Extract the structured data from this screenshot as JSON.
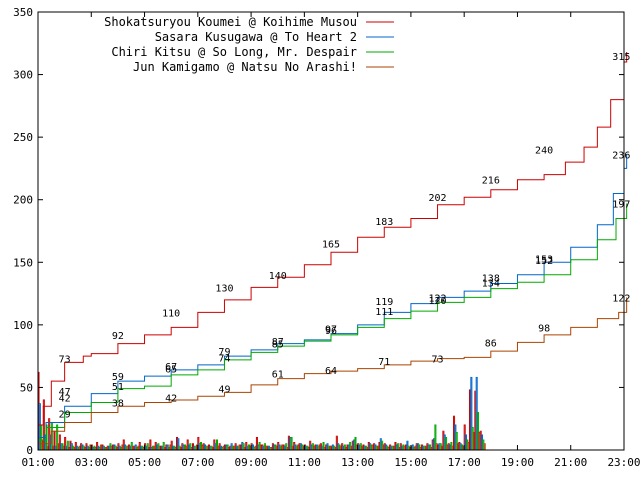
{
  "chart_data": {
    "type": "line",
    "xlim": [
      1,
      23
    ],
    "ylim": [
      0,
      350
    ],
    "x_ticks": [
      "01:00",
      "03:00",
      "05:00",
      "07:00",
      "09:00",
      "11:00",
      "13:00",
      "15:00",
      "17:00",
      "19:00",
      "21:00",
      "23:00"
    ],
    "y_ticks": [
      0,
      50,
      100,
      150,
      200,
      250,
      300,
      350
    ],
    "grid": false,
    "legend_position": "top-left",
    "series": [
      {
        "name": "Shokatsuryou Koumei @ Koihime Musou",
        "color": "#cc0000",
        "points": [
          [
            1,
            20
          ],
          [
            1.2,
            35
          ],
          [
            1.5,
            55
          ],
          [
            2,
            70
          ],
          [
            2.7,
            75
          ],
          [
            3,
            77
          ],
          [
            4,
            85
          ],
          [
            5,
            92
          ],
          [
            6,
            98
          ],
          [
            7,
            110
          ],
          [
            8,
            120
          ],
          [
            9,
            130
          ],
          [
            10,
            138
          ],
          [
            11,
            148
          ],
          [
            12,
            158
          ],
          [
            13,
            170
          ],
          [
            14,
            178
          ],
          [
            15,
            185
          ],
          [
            16,
            196
          ],
          [
            17,
            202
          ],
          [
            18,
            208
          ],
          [
            19,
            216
          ],
          [
            20,
            220
          ],
          [
            20.8,
            230
          ],
          [
            21.5,
            242
          ],
          [
            22,
            258
          ],
          [
            22.5,
            280
          ],
          [
            23,
            310
          ],
          [
            23.1,
            318
          ]
        ],
        "labels": [
          [
            2,
            73
          ],
          [
            4,
            92
          ],
          [
            6,
            110
          ],
          [
            8,
            130
          ],
          [
            10,
            140
          ],
          [
            12,
            165
          ],
          [
            14,
            183
          ],
          [
            16,
            202
          ],
          [
            18,
            216
          ],
          [
            20,
            240
          ],
          [
            22.9,
            315
          ]
        ]
      },
      {
        "name": "Sasara Kusugawa @ To Heart 2",
        "color": "#0066cc",
        "points": [
          [
            1,
            10
          ],
          [
            1.3,
            22
          ],
          [
            2,
            35
          ],
          [
            3,
            45
          ],
          [
            4,
            55
          ],
          [
            5,
            59
          ],
          [
            6,
            64
          ],
          [
            7,
            68
          ],
          [
            8,
            75
          ],
          [
            9,
            80
          ],
          [
            10,
            85
          ],
          [
            11,
            88
          ],
          [
            12,
            93
          ],
          [
            13,
            100
          ],
          [
            14,
            110
          ],
          [
            15,
            117
          ],
          [
            16,
            122
          ],
          [
            17,
            127
          ],
          [
            18,
            133
          ],
          [
            19,
            140
          ],
          [
            20,
            150
          ],
          [
            21,
            162
          ],
          [
            22,
            180
          ],
          [
            22.6,
            205
          ],
          [
            23,
            225
          ],
          [
            23.1,
            236
          ]
        ],
        "labels": [
          [
            2,
            47
          ],
          [
            4,
            59
          ],
          [
            6,
            67
          ],
          [
            8,
            79
          ],
          [
            10,
            87
          ],
          [
            12,
            97
          ],
          [
            14,
            119
          ],
          [
            16,
            122
          ],
          [
            18,
            138
          ],
          [
            20,
            153
          ],
          [
            22.9,
            236
          ]
        ]
      },
      {
        "name": "Chiri Kitsu @ So Long, Mr. Despair",
        "color": "#00aa00",
        "points": [
          [
            1,
            8
          ],
          [
            1.3,
            18
          ],
          [
            2,
            30
          ],
          [
            3,
            38
          ],
          [
            4,
            49
          ],
          [
            5,
            51
          ],
          [
            6,
            60
          ],
          [
            7,
            64
          ],
          [
            8,
            72
          ],
          [
            9,
            78
          ],
          [
            10,
            83
          ],
          [
            11,
            87
          ],
          [
            12,
            92
          ],
          [
            13,
            98
          ],
          [
            14,
            105
          ],
          [
            15,
            111
          ],
          [
            16,
            118
          ],
          [
            17,
            122
          ],
          [
            18,
            129
          ],
          [
            19,
            134
          ],
          [
            20,
            140
          ],
          [
            21,
            152
          ],
          [
            22,
            168
          ],
          [
            22.7,
            185
          ],
          [
            23.1,
            197
          ]
        ],
        "labels": [
          [
            2,
            42
          ],
          [
            4,
            51
          ],
          [
            6,
            65
          ],
          [
            8,
            74
          ],
          [
            10,
            85
          ],
          [
            12,
            96
          ],
          [
            14,
            111
          ],
          [
            16,
            120
          ],
          [
            18,
            134
          ],
          [
            20,
            152
          ],
          [
            22.9,
            197
          ]
        ]
      },
      {
        "name": "Jun Kamigamo @ Natsu No Arashi!",
        "color": "#aa4400",
        "points": [
          [
            1,
            5
          ],
          [
            1.5,
            15
          ],
          [
            2,
            22
          ],
          [
            3,
            30
          ],
          [
            4,
            35
          ],
          [
            5,
            38
          ],
          [
            6,
            40
          ],
          [
            7,
            43
          ],
          [
            8,
            46
          ],
          [
            9,
            52
          ],
          [
            10,
            57
          ],
          [
            11,
            61
          ],
          [
            12,
            63
          ],
          [
            13,
            65
          ],
          [
            14,
            68
          ],
          [
            15,
            71
          ],
          [
            16,
            73
          ],
          [
            17,
            74
          ],
          [
            18,
            79
          ],
          [
            19,
            86
          ],
          [
            20,
            92
          ],
          [
            21,
            98
          ],
          [
            22,
            105
          ],
          [
            22.8,
            110
          ],
          [
            23.1,
            122
          ]
        ],
        "labels": [
          [
            2,
            29
          ],
          [
            4,
            38
          ],
          [
            6,
            42
          ],
          [
            8,
            49
          ],
          [
            10,
            61
          ],
          [
            12,
            64
          ],
          [
            14,
            71
          ],
          [
            16,
            73
          ],
          [
            18,
            86
          ],
          [
            20,
            98
          ],
          [
            22.9,
            122
          ]
        ]
      }
    ],
    "histogram": {
      "bin_width": 0.2,
      "start": 1,
      "values": [
        [
          62,
          37,
          20,
          8
        ],
        [
          40,
          12,
          20,
          3
        ],
        [
          25,
          12,
          22,
          3
        ],
        [
          15,
          3,
          20,
          5
        ],
        [
          12,
          5,
          5,
          3
        ],
        [
          10,
          3,
          7,
          2
        ],
        [
          7,
          5,
          3,
          2
        ],
        [
          6,
          3,
          2,
          3
        ],
        [
          5,
          4,
          3,
          2
        ],
        [
          5,
          3,
          2,
          4
        ],
        [
          4,
          2,
          3,
          2
        ],
        [
          6,
          3,
          2,
          4
        ],
        [
          4,
          3,
          2,
          2
        ],
        [
          3,
          3,
          5,
          3
        ],
        [
          4,
          4,
          3,
          2
        ],
        [
          5,
          3,
          2,
          4
        ],
        [
          8,
          4,
          3,
          3
        ],
        [
          4,
          3,
          6,
          3
        ],
        [
          3,
          4,
          2,
          3
        ],
        [
          6,
          3,
          3,
          2
        ],
        [
          5,
          3,
          5,
          2
        ],
        [
          8,
          2,
          3,
          3
        ],
        [
          6,
          4,
          5,
          3
        ],
        [
          3,
          3,
          6,
          2
        ],
        [
          4,
          4,
          2,
          4
        ],
        [
          7,
          3,
          3,
          2
        ],
        [
          10,
          9,
          3,
          2
        ],
        [
          5,
          4,
          4,
          3
        ],
        [
          8,
          4,
          5,
          2
        ],
        [
          5,
          3,
          3,
          4
        ],
        [
          10,
          5,
          6,
          4
        ],
        [
          5,
          4,
          3,
          3
        ],
        [
          4,
          3,
          3,
          2
        ],
        [
          8,
          5,
          8,
          3
        ],
        [
          5,
          3,
          2,
          3
        ],
        [
          4,
          4,
          4,
          2
        ],
        [
          3,
          5,
          3,
          3
        ],
        [
          5,
          3,
          3,
          4
        ],
        [
          4,
          6,
          5,
          2
        ],
        [
          6,
          3,
          4,
          3
        ],
        [
          5,
          4,
          2,
          3
        ],
        [
          10,
          4,
          6,
          4
        ],
        [
          4,
          3,
          5,
          3
        ],
        [
          3,
          3,
          2,
          2
        ],
        [
          5,
          4,
          4,
          3
        ],
        [
          6,
          4,
          3,
          4
        ],
        [
          4,
          3,
          5,
          2
        ],
        [
          11,
          10,
          10,
          3
        ],
        [
          6,
          4,
          3,
          4
        ],
        [
          5,
          5,
          4,
          3
        ],
        [
          4,
          3,
          3,
          2
        ],
        [
          7,
          4,
          5,
          3
        ],
        [
          4,
          4,
          3,
          4
        ],
        [
          5,
          3,
          6,
          2
        ],
        [
          4,
          5,
          3,
          3
        ],
        [
          3,
          4,
          3,
          2
        ],
        [
          11,
          5,
          4,
          3
        ],
        [
          5,
          3,
          4,
          2
        ],
        [
          4,
          4,
          6,
          3
        ],
        [
          7,
          8,
          10,
          4
        ],
        [
          5,
          4,
          5,
          3
        ],
        [
          4,
          3,
          3,
          2
        ],
        [
          6,
          5,
          4,
          4
        ],
        [
          5,
          4,
          3,
          3
        ],
        [
          6,
          9,
          7,
          4
        ],
        [
          5,
          4,
          3,
          2
        ],
        [
          4,
          3,
          3,
          3
        ],
        [
          6,
          4,
          5,
          2
        ],
        [
          5,
          3,
          4,
          3
        ],
        [
          4,
          7,
          3,
          2
        ],
        [
          3,
          4,
          2,
          3
        ],
        [
          5,
          5,
          4,
          2
        ],
        [
          4,
          3,
          3,
          3
        ],
        [
          5,
          4,
          4,
          2
        ],
        [
          8,
          9,
          20,
          5
        ],
        [
          4,
          5,
          5,
          3
        ],
        [
          15,
          12,
          10,
          4
        ],
        [
          5,
          4,
          6,
          3
        ],
        [
          27,
          20,
          14,
          5
        ],
        [
          6,
          5,
          4,
          3
        ],
        [
          20,
          12,
          8,
          6
        ],
        [
          48,
          58,
          18,
          14
        ],
        [
          47,
          58,
          30,
          14
        ],
        [
          15,
          12,
          8,
          5
        ]
      ]
    }
  }
}
